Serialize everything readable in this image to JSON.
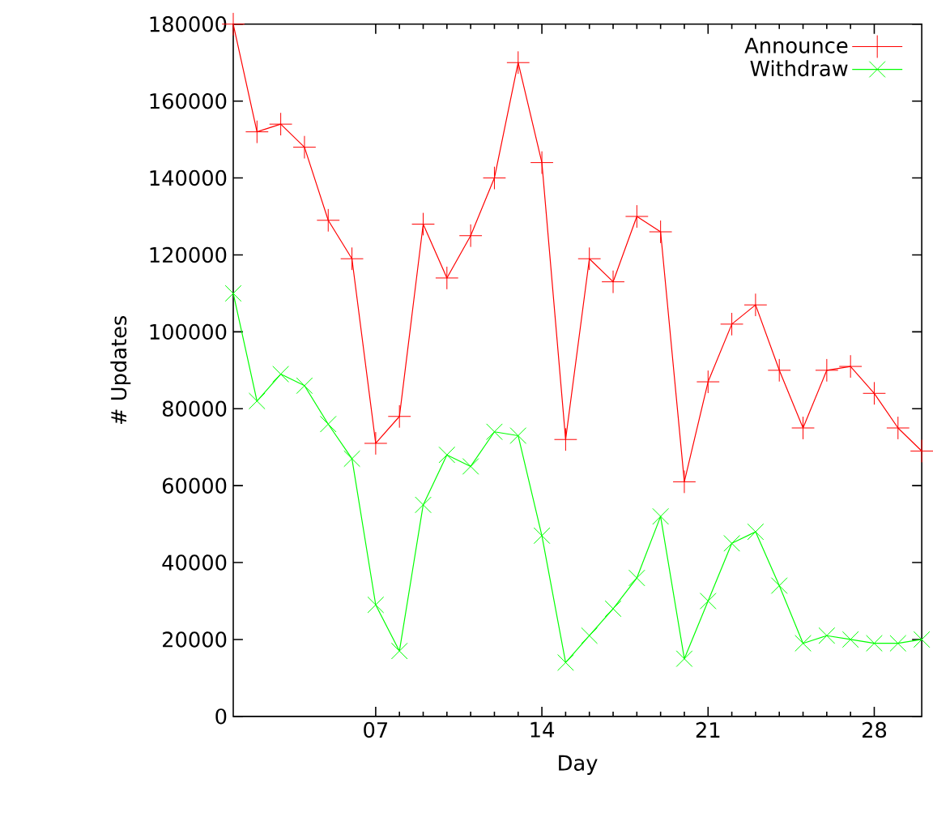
{
  "chart_data": {
    "type": "line",
    "xlabel": "Day",
    "ylabel": "# Updates",
    "x": [
      1,
      2,
      3,
      4,
      5,
      6,
      7,
      8,
      9,
      10,
      11,
      12,
      13,
      14,
      15,
      16,
      17,
      18,
      19,
      20,
      21,
      22,
      23,
      24,
      25,
      26,
      27,
      28,
      29,
      30
    ],
    "series": [
      {
        "name": "Announce",
        "color": "#ff0000",
        "marker": "plus",
        "values": [
          180000,
          152000,
          154000,
          148000,
          129000,
          119000,
          71000,
          78000,
          128000,
          114000,
          125000,
          140000,
          170000,
          144000,
          72000,
          119000,
          113000,
          130000,
          126000,
          61000,
          87000,
          102000,
          107000,
          90000,
          75000,
          90000,
          91000,
          84000,
          75000,
          69000
        ]
      },
      {
        "name": "Withdraw",
        "color": "#00ff00",
        "marker": "cross",
        "values": [
          110000,
          82000,
          89000,
          86000,
          76000,
          67000,
          29000,
          17000,
          55000,
          68000,
          65000,
          74000,
          73000,
          47000,
          14000,
          21000,
          28000,
          36000,
          52000,
          15000,
          30000,
          45000,
          48000,
          34000,
          19000,
          21000,
          20000,
          19000,
          19000,
          20000
        ]
      }
    ],
    "xlim": [
      1,
      30
    ],
    "ylim": [
      0,
      180000
    ],
    "xticks": [
      {
        "value": 7,
        "label": "07"
      },
      14,
      21,
      28
    ],
    "yticks": [
      0,
      20000,
      40000,
      60000,
      80000,
      100000,
      120000,
      140000,
      160000,
      180000
    ],
    "legend": "top right",
    "line_style": "solid",
    "grid": false
  }
}
